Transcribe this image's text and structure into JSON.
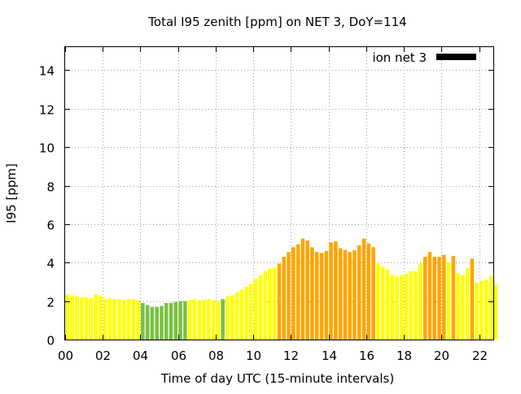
{
  "chart_data": {
    "type": "bar",
    "title": "Total I95 zenith [ppm] on NET 3, DoY=114",
    "xlabel": "Time of day UTC (15-minute intervals)",
    "ylabel": "I95 [ppm]",
    "xlim": [
      0,
      22.75
    ],
    "ylim": [
      0,
      15.2
    ],
    "x_ticks": [
      "00",
      "02",
      "04",
      "06",
      "08",
      "10",
      "12",
      "14",
      "16",
      "18",
      "20",
      "22"
    ],
    "y_ticks": [
      "0",
      "2",
      "4",
      "6",
      "8",
      "10",
      "12",
      "14"
    ],
    "grid": true,
    "legend_position": "top-right",
    "series": [
      {
        "name": "ion net 3",
        "bar_interval_hours": 0.25,
        "values": [
          2.35,
          2.3,
          2.25,
          2.2,
          2.2,
          2.15,
          2.35,
          2.3,
          2.1,
          2.15,
          2.1,
          2.1,
          2.05,
          2.1,
          2.1,
          2.05,
          1.9,
          1.8,
          1.7,
          1.7,
          1.75,
          1.9,
          1.9,
          1.95,
          2.0,
          2.0,
          2.05,
          2.1,
          2.05,
          2.05,
          2.1,
          2.05,
          2.0,
          2.1,
          2.25,
          2.3,
          2.45,
          2.6,
          2.75,
          2.9,
          3.15,
          3.35,
          3.55,
          3.7,
          3.75,
          3.95,
          4.3,
          4.55,
          4.8,
          4.95,
          5.25,
          5.15,
          4.8,
          4.55,
          4.5,
          4.6,
          5.05,
          5.1,
          4.75,
          4.65,
          4.55,
          4.65,
          4.9,
          5.25,
          5.0,
          4.8,
          3.95,
          3.8,
          3.65,
          3.35,
          3.3,
          3.35,
          3.4,
          3.55,
          3.55,
          3.95,
          4.3,
          4.55,
          4.3,
          4.3,
          4.4,
          4.0,
          4.35,
          3.45,
          3.35,
          3.7,
          4.2,
          2.95,
          3.05,
          3.1,
          3.3,
          2.85
        ]
      }
    ],
    "colors": {
      "legend_swatch": "#000000",
      "level_green": "#7ac043",
      "level_yellow": "#ffff00",
      "level_orange": "#ffa500"
    },
    "bar_color_levels": [
      "yellow",
      "yellow",
      "yellow",
      "yellow",
      "yellow",
      "yellow",
      "yellow",
      "yellow",
      "yellow",
      "yellow",
      "yellow",
      "yellow",
      "yellow",
      "yellow",
      "yellow",
      "yellow",
      "green",
      "green",
      "green",
      "green",
      "green",
      "green",
      "green",
      "green",
      "green",
      "green",
      "yellow",
      "yellow",
      "yellow",
      "yellow",
      "yellow",
      "yellow",
      "yellow",
      "green",
      "yellow",
      "yellow",
      "yellow",
      "yellow",
      "yellow",
      "yellow",
      "yellow",
      "yellow",
      "yellow",
      "yellow",
      "yellow",
      "orange",
      "orange",
      "orange",
      "orange",
      "orange",
      "orange",
      "orange",
      "orange",
      "orange",
      "orange",
      "orange",
      "orange",
      "orange",
      "orange",
      "orange",
      "orange",
      "orange",
      "orange",
      "orange",
      "orange",
      "orange",
      "yellow",
      "yellow",
      "yellow",
      "yellow",
      "yellow",
      "yellow",
      "yellow",
      "yellow",
      "yellow",
      "yellow",
      "orange",
      "orange",
      "orange",
      "orange",
      "orange",
      "yellow",
      "orange",
      "yellow",
      "yellow",
      "yellow",
      "orange",
      "yellow",
      "yellow",
      "yellow",
      "yellow",
      "yellow"
    ]
  }
}
